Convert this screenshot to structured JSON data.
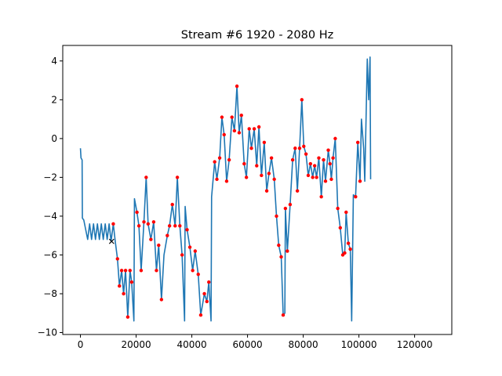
{
  "chart_data": {
    "type": "line",
    "title": "Stream #6 1920 - 2080 Hz",
    "xlabel": "",
    "ylabel": "",
    "xlim": [
      -6350,
      133350
    ],
    "ylim": [
      -10.1,
      4.8
    ],
    "x_ticks": [
      0,
      20000,
      40000,
      60000,
      80000,
      100000,
      120000
    ],
    "x_tick_labels": [
      "0",
      "20000",
      "40000",
      "60000",
      "80000",
      "100000",
      "120000"
    ],
    "y_ticks": [
      -10,
      -8,
      -6,
      -4,
      -2,
      0,
      2,
      4
    ],
    "y_tick_labels": [
      "−10",
      "−8",
      "−6",
      "−4",
      "−2",
      "0",
      "2",
      "4"
    ],
    "grid": false,
    "legend": "none",
    "colors": {
      "line": "#1f77b4",
      "peaks": "#ff0000",
      "start_marker": "#000000"
    },
    "series": [
      {
        "kind": "line",
        "points": [
          [
            0,
            -0.5
          ],
          [
            200,
            -1.0
          ],
          [
            600,
            -1.1
          ],
          [
            700,
            -4.1
          ],
          [
            1200,
            -4.2
          ],
          [
            1900,
            -4.7
          ],
          [
            2600,
            -5.2
          ],
          [
            3300,
            -4.4
          ],
          [
            4000,
            -5.2
          ],
          [
            4700,
            -4.4
          ],
          [
            5400,
            -5.2
          ],
          [
            6100,
            -4.4
          ],
          [
            6800,
            -5.2
          ],
          [
            7500,
            -4.4
          ],
          [
            8200,
            -5.2
          ],
          [
            8900,
            -4.4
          ],
          [
            9600,
            -5.2
          ],
          [
            10300,
            -4.4
          ],
          [
            11000,
            -5.3
          ],
          [
            11800,
            -4.4
          ],
          [
            12500,
            -5.3
          ],
          [
            13300,
            -6.2
          ],
          [
            14000,
            -7.6
          ],
          [
            14800,
            -6.8
          ],
          [
            15500,
            -8.0
          ],
          [
            16200,
            -6.8
          ],
          [
            17000,
            -9.2
          ],
          [
            17800,
            -6.8
          ],
          [
            18400,
            -7.4
          ],
          [
            19200,
            -9.4
          ],
          [
            19400,
            -3.1
          ],
          [
            20300,
            -3.8
          ],
          [
            21000,
            -4.5
          ],
          [
            21800,
            -6.8
          ],
          [
            22800,
            -4.3
          ],
          [
            23600,
            -2.0
          ],
          [
            24300,
            -4.4
          ],
          [
            25300,
            -5.2
          ],
          [
            26300,
            -4.3
          ],
          [
            27300,
            -6.8
          ],
          [
            28100,
            -5.5
          ],
          [
            29100,
            -8.3
          ],
          [
            30000,
            -6.0
          ],
          [
            31200,
            -5.0
          ],
          [
            32000,
            -4.5
          ],
          [
            33000,
            -3.4
          ],
          [
            34000,
            -4.5
          ],
          [
            34800,
            -2.0
          ],
          [
            35700,
            -4.5
          ],
          [
            36500,
            -6.0
          ],
          [
            37400,
            -9.4
          ],
          [
            37600,
            -3.5
          ],
          [
            38300,
            -4.7
          ],
          [
            39300,
            -5.6
          ],
          [
            40300,
            -6.8
          ],
          [
            41200,
            -5.8
          ],
          [
            42300,
            -7.0
          ],
          [
            43200,
            -9.1
          ],
          [
            44500,
            -8.0
          ],
          [
            45400,
            -8.4
          ],
          [
            46100,
            -7.4
          ],
          [
            46900,
            -9.4
          ],
          [
            47100,
            -3.0
          ],
          [
            48200,
            -1.2
          ],
          [
            49000,
            -2.1
          ],
          [
            50000,
            -1.0
          ],
          [
            50800,
            1.1
          ],
          [
            51600,
            0.2
          ],
          [
            52500,
            -2.2
          ],
          [
            53400,
            -1.1
          ],
          [
            54400,
            1.1
          ],
          [
            55300,
            0.4
          ],
          [
            56200,
            2.7
          ],
          [
            57000,
            0.3
          ],
          [
            57800,
            1.2
          ],
          [
            58800,
            -1.3
          ],
          [
            59600,
            -2.0
          ],
          [
            60600,
            0.5
          ],
          [
            61400,
            -0.5
          ],
          [
            62400,
            0.5
          ],
          [
            63300,
            -1.4
          ],
          [
            64100,
            0.6
          ],
          [
            65000,
            -1.9
          ],
          [
            66000,
            -0.2
          ],
          [
            66900,
            -2.7
          ],
          [
            67700,
            -1.8
          ],
          [
            68600,
            -1.0
          ],
          [
            69600,
            -2.1
          ],
          [
            70400,
            -4.0
          ],
          [
            71200,
            -5.5
          ],
          [
            72100,
            -6.1
          ],
          [
            72800,
            -9.1
          ],
          [
            73400,
            -9.0
          ],
          [
            73600,
            -3.6
          ],
          [
            74300,
            -5.8
          ],
          [
            75300,
            -3.4
          ],
          [
            76200,
            -1.1
          ],
          [
            77100,
            -0.5
          ],
          [
            77900,
            -2.7
          ],
          [
            78700,
            -0.5
          ],
          [
            79500,
            2.0
          ],
          [
            80200,
            -0.4
          ],
          [
            81000,
            -0.8
          ],
          [
            81800,
            -1.9
          ],
          [
            82600,
            -1.3
          ],
          [
            83400,
            -2.0
          ],
          [
            84100,
            -1.4
          ],
          [
            84800,
            -2.0
          ],
          [
            85600,
            -1.0
          ],
          [
            86500,
            -3.0
          ],
          [
            87300,
            -1.1
          ],
          [
            88000,
            -2.2
          ],
          [
            89000,
            -0.6
          ],
          [
            89600,
            -1.3
          ],
          [
            90100,
            -2.1
          ],
          [
            90700,
            -1.0
          ],
          [
            91500,
            0.0
          ],
          [
            92400,
            -3.6
          ],
          [
            93300,
            -4.6
          ],
          [
            94200,
            -6.0
          ],
          [
            94900,
            -5.9
          ],
          [
            95400,
            -3.8
          ],
          [
            96200,
            -5.4
          ],
          [
            96900,
            -5.7
          ],
          [
            97400,
            -9.4
          ],
          [
            98000,
            -2.9
          ],
          [
            98800,
            -3.0
          ],
          [
            99600,
            -0.2
          ],
          [
            100400,
            -2.2
          ],
          [
            100900,
            1.0
          ],
          [
            101700,
            -0.5
          ],
          [
            102100,
            -2.2
          ],
          [
            103000,
            4.1
          ],
          [
            103500,
            2.0
          ],
          [
            104000,
            4.2
          ],
          [
            104200,
            -2.1
          ]
        ]
      },
      {
        "kind": "peaks",
        "points": [
          [
            11800,
            -4.4
          ],
          [
            13300,
            -6.2
          ],
          [
            14000,
            -7.6
          ],
          [
            14800,
            -6.8
          ],
          [
            15500,
            -8.0
          ],
          [
            16200,
            -6.8
          ],
          [
            17000,
            -9.2
          ],
          [
            17800,
            -6.8
          ],
          [
            18400,
            -7.4
          ],
          [
            20300,
            -3.8
          ],
          [
            21000,
            -4.5
          ],
          [
            21800,
            -6.8
          ],
          [
            22800,
            -4.3
          ],
          [
            23600,
            -2.0
          ],
          [
            24300,
            -4.4
          ],
          [
            25300,
            -5.2
          ],
          [
            26300,
            -4.3
          ],
          [
            27300,
            -6.8
          ],
          [
            28100,
            -5.5
          ],
          [
            29100,
            -8.3
          ],
          [
            31200,
            -5.0
          ],
          [
            32000,
            -4.5
          ],
          [
            33000,
            -3.4
          ],
          [
            34000,
            -4.5
          ],
          [
            34800,
            -2.0
          ],
          [
            35700,
            -4.5
          ],
          [
            36500,
            -6.0
          ],
          [
            38300,
            -4.7
          ],
          [
            39300,
            -5.6
          ],
          [
            40300,
            -6.8
          ],
          [
            41200,
            -5.8
          ],
          [
            42300,
            -7.0
          ],
          [
            43200,
            -9.1
          ],
          [
            44500,
            -8.0
          ],
          [
            45400,
            -8.4
          ],
          [
            46100,
            -7.4
          ],
          [
            48200,
            -1.2
          ],
          [
            49000,
            -2.1
          ],
          [
            50000,
            -1.0
          ],
          [
            50800,
            1.1
          ],
          [
            51600,
            0.2
          ],
          [
            52500,
            -2.2
          ],
          [
            53400,
            -1.1
          ],
          [
            54400,
            1.1
          ],
          [
            55300,
            0.4
          ],
          [
            56200,
            2.7
          ],
          [
            57000,
            0.3
          ],
          [
            57800,
            1.2
          ],
          [
            58800,
            -1.3
          ],
          [
            59600,
            -2.0
          ],
          [
            60600,
            0.5
          ],
          [
            61400,
            -0.5
          ],
          [
            62400,
            0.5
          ],
          [
            63300,
            -1.4
          ],
          [
            64100,
            0.6
          ],
          [
            65000,
            -1.9
          ],
          [
            66000,
            -0.2
          ],
          [
            66900,
            -2.7
          ],
          [
            67700,
            -1.8
          ],
          [
            68600,
            -1.0
          ],
          [
            69600,
            -2.1
          ],
          [
            70400,
            -4.0
          ],
          [
            71200,
            -5.5
          ],
          [
            72100,
            -6.1
          ],
          [
            72800,
            -9.1
          ],
          [
            73600,
            -3.6
          ],
          [
            74300,
            -5.8
          ],
          [
            75300,
            -3.4
          ],
          [
            76200,
            -1.1
          ],
          [
            77100,
            -0.5
          ],
          [
            77900,
            -2.7
          ],
          [
            78700,
            -0.5
          ],
          [
            79500,
            2.0
          ],
          [
            80200,
            -0.4
          ],
          [
            81000,
            -0.8
          ],
          [
            81800,
            -1.9
          ],
          [
            82600,
            -1.3
          ],
          [
            83400,
            -2.0
          ],
          [
            84100,
            -1.4
          ],
          [
            84800,
            -2.0
          ],
          [
            85600,
            -1.0
          ],
          [
            86500,
            -3.0
          ],
          [
            87300,
            -1.1
          ],
          [
            88000,
            -2.2
          ],
          [
            89000,
            -0.6
          ],
          [
            89600,
            -1.3
          ],
          [
            90100,
            -2.1
          ],
          [
            90700,
            -1.0
          ],
          [
            91500,
            0.0
          ],
          [
            92400,
            -3.6
          ],
          [
            93300,
            -4.6
          ],
          [
            94200,
            -6.0
          ],
          [
            94900,
            -5.9
          ],
          [
            95400,
            -3.8
          ],
          [
            96200,
            -5.4
          ],
          [
            96900,
            -5.7
          ],
          [
            98800,
            -3.0
          ],
          [
            99600,
            -0.2
          ],
          [
            100400,
            -2.2
          ]
        ]
      },
      {
        "kind": "start-marker",
        "points": [
          [
            11200,
            -5.3
          ]
        ]
      }
    ]
  }
}
